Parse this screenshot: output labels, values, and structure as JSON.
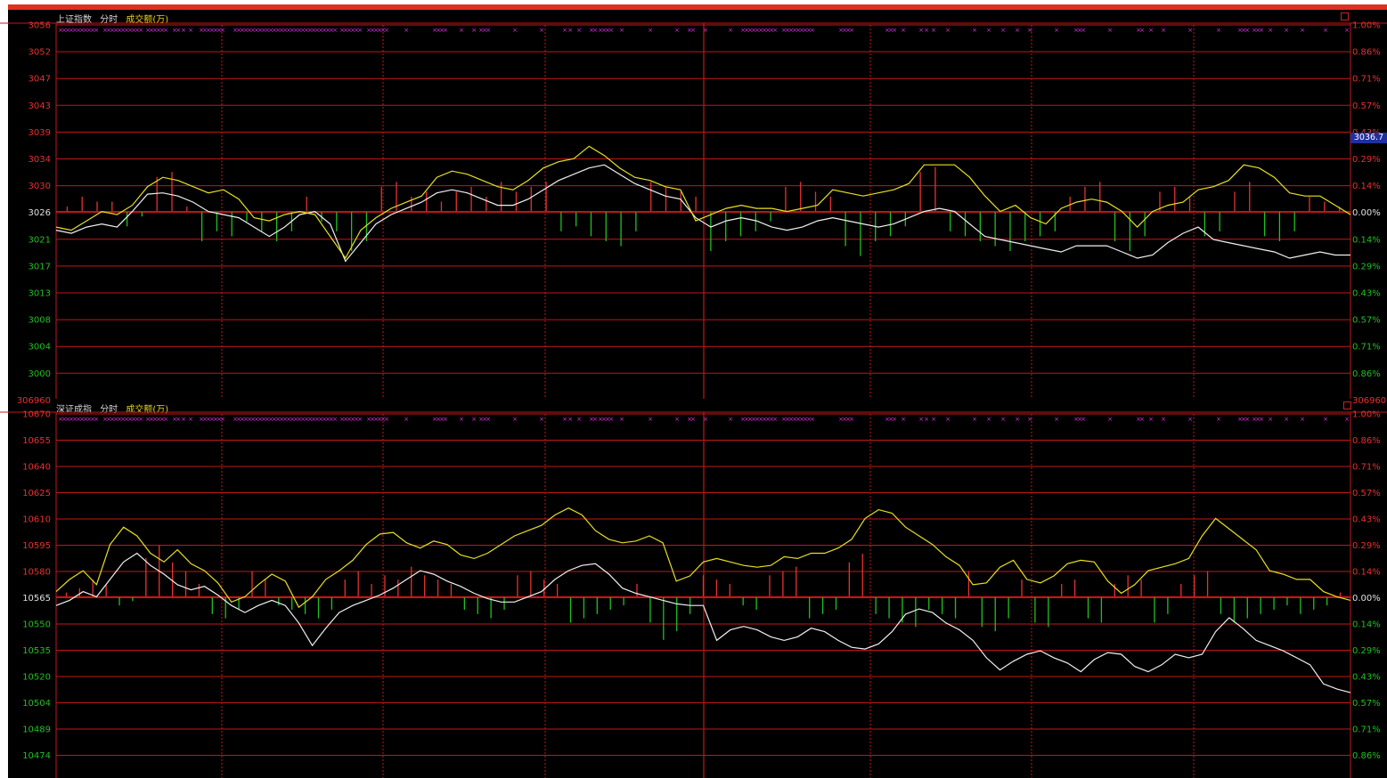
{
  "colors": {
    "background": "#000000",
    "grid": "#c01818",
    "up": "#e83030",
    "down": "#20c020",
    "index_line": "#f0f0f0",
    "avg_line": "#e8e020",
    "marker": "#e030e0",
    "label_green": "#20c020",
    "label_red": "#e83030"
  },
  "chart_data": [
    {
      "type": "line",
      "panel": "top",
      "header": {
        "index_name": "上证指数",
        "mode": "分时",
        "volume_label": "成交额(万)"
      },
      "price_tag": "3036.7",
      "left_labels": [
        "3056",
        "3052",
        "3047",
        "3043",
        "3039",
        "3034",
        "3030",
        "3026",
        "3021",
        "3017",
        "3013",
        "3008",
        "3004",
        "3000"
      ],
      "left_label_bottom": "306960",
      "right_labels": [
        "1.00%",
        "0.86%",
        "0.71%",
        "0.57%",
        "0.43%",
        "0.29%",
        "0.14%",
        "0.00%",
        "0.14%",
        "0.29%",
        "0.43%",
        "0.57%",
        "0.71%",
        "0.86%"
      ],
      "right_label_bottom": "306960",
      "ylim": [
        3000,
        3056
      ],
      "baseline": 3026,
      "series": [
        {
          "values": [
            3023,
            3022.5,
            3023.5,
            3024,
            3023.5,
            3026,
            3028.8,
            3029,
            3028.5,
            3027.5,
            3026,
            3025.5,
            3025,
            3023.5,
            3022,
            3023.5,
            3025.5,
            3026,
            3024,
            3018,
            3021,
            3024,
            3025.5,
            3026.5,
            3027.5,
            3029,
            3029.5,
            3029,
            3028,
            3027,
            3027,
            3028,
            3029.5,
            3031,
            3032,
            3033,
            3033.5,
            3032,
            3030.5,
            3029.5,
            3028.5,
            3028,
            3025,
            3023.5,
            3024.5,
            3025,
            3024.5,
            3023.5,
            3023,
            3023.5,
            3024.5,
            3025,
            3024.5,
            3024,
            3023.5,
            3024,
            3025,
            3026,
            3026.5,
            3026,
            3024,
            3022,
            3021.5,
            3021,
            3020.5,
            3020,
            3019.5,
            3020.5,
            3020.5,
            3020.5,
            3019.5,
            3018.5,
            3019,
            3021,
            3022.5,
            3023.5,
            3021.5,
            3021,
            3020.5,
            3020,
            3019.5,
            3018.5,
            3019,
            3019.5,
            3019,
            3019
          ]
        },
        {
          "values": [
            3023.5,
            3023,
            3024.5,
            3026,
            3025.5,
            3027,
            3030,
            3031.5,
            3031,
            3030,
            3029,
            3029.5,
            3028,
            3025,
            3024.5,
            3025.5,
            3026,
            3025.5,
            3022,
            3018.5,
            3023,
            3025,
            3026.5,
            3027.5,
            3028.5,
            3031.5,
            3032.5,
            3032,
            3031,
            3030,
            3029.5,
            3031,
            3033,
            3034,
            3034.5,
            3036.5,
            3035,
            3033,
            3031.5,
            3031,
            3030,
            3029.5,
            3024.5,
            3025.5,
            3026.5,
            3027,
            3026.5,
            3026.5,
            3026,
            3026.5,
            3027,
            3029.5,
            3029,
            3028.5,
            3029,
            3029.5,
            3030.5,
            3033.5,
            3033.5,
            3033.5,
            3031.5,
            3028.5,
            3026,
            3027,
            3025,
            3024,
            3026.5,
            3027.5,
            3028,
            3027.5,
            3026,
            3023.5,
            3026,
            3027,
            3027.5,
            3029.5,
            3030,
            3031,
            3033.5,
            3033,
            3031.5,
            3029,
            3028.5,
            3028.5,
            3027,
            3025.5
          ]
        }
      ],
      "volume_values": [
        1,
        3,
        2,
        2,
        -3,
        -1,
        7,
        8,
        1,
        -6,
        -4,
        -5,
        -2,
        -4,
        -6,
        -4,
        3,
        -2,
        -4,
        -8,
        -6,
        5,
        6,
        3,
        4,
        2,
        4,
        5,
        3,
        6,
        4,
        5,
        6,
        -4,
        -3,
        -5,
        -6,
        -7,
        -4,
        6,
        5,
        4,
        3,
        -8,
        -6,
        -5,
        -4,
        -2,
        5,
        6,
        4,
        3,
        -7,
        -9,
        -6,
        -5,
        -3,
        8,
        9,
        -4,
        -5,
        -6,
        -7,
        -8,
        -6,
        -5,
        -4,
        3,
        5,
        6,
        -6,
        -8,
        -5,
        4,
        5,
        3,
        -5,
        -4,
        4,
        6,
        -5,
        -6,
        -4,
        3,
        2,
        1
      ]
    },
    {
      "type": "line",
      "panel": "bottom",
      "header": {
        "index_name": "深证成指",
        "mode": "分时",
        "volume_label": "成交额(万)"
      },
      "left_labels": [
        "10670",
        "10655",
        "10640",
        "10625",
        "10610",
        "10595",
        "10580",
        "10565",
        "10550",
        "10535",
        "10520",
        "10504",
        "10489",
        "10474"
      ],
      "right_labels": [
        "1.00%",
        "0.86%",
        "0.71%",
        "0.57%",
        "0.43%",
        "0.29%",
        "0.14%",
        "0.00%",
        "0.14%",
        "0.29%",
        "0.43%",
        "0.57%",
        "0.71%",
        "0.86%"
      ],
      "ylim": [
        10474,
        10670
      ],
      "baseline": 10565,
      "series": [
        {
          "values": [
            10560,
            10563,
            10568,
            10565,
            10575,
            10585,
            10590,
            10583,
            10578,
            10572,
            10569,
            10571,
            10566,
            10560,
            10556,
            10560,
            10563,
            10560,
            10550,
            10537,
            10547,
            10556,
            10560,
            10563,
            10566,
            10570,
            10575,
            10580,
            10578,
            10574,
            10571,
            10567,
            10564,
            10562,
            10562,
            10565,
            10568,
            10575,
            10580,
            10583,
            10584,
            10578,
            10570,
            10567,
            10565,
            10563,
            10561,
            10560,
            10560,
            10540,
            10546,
            10548,
            10546,
            10542,
            10540,
            10542,
            10547,
            10545,
            10540,
            10536,
            10535,
            10538,
            10545,
            10555,
            10558,
            10556,
            10550,
            10546,
            10540,
            10530,
            10523,
            10528,
            10532,
            10534,
            10530,
            10527,
            10522,
            10529,
            10533,
            10532,
            10525,
            10522,
            10526,
            10532,
            10530,
            10532,
            10545,
            10553,
            10547,
            10540,
            10537,
            10534,
            10530,
            10526,
            10515,
            10512,
            10510
          ]
        },
        {
          "values": [
            10568,
            10575,
            10580,
            10572,
            10595,
            10605,
            10600,
            10590,
            10585,
            10592,
            10584,
            10580,
            10573,
            10562,
            10565,
            10572,
            10578,
            10574,
            10559,
            10565,
            10575,
            10580,
            10586,
            10595,
            10601,
            10602,
            10596,
            10593,
            10597,
            10595,
            10589,
            10587,
            10590,
            10595,
            10600,
            10603,
            10606,
            10612,
            10616,
            10612,
            10603,
            10598,
            10596,
            10597,
            10600,
            10596,
            10574,
            10577,
            10585,
            10587,
            10585,
            10583,
            10582,
            10583,
            10588,
            10587,
            10590,
            10590,
            10593,
            10598,
            10610,
            10615,
            10613,
            10605,
            10600,
            10595,
            10588,
            10583,
            10572,
            10573,
            10582,
            10586,
            10575,
            10573,
            10577,
            10584,
            10586,
            10585,
            10574,
            10567,
            10572,
            10580,
            10582,
            10584,
            10587,
            10600,
            10610,
            10604,
            10598,
            10592,
            10580,
            10578,
            10575,
            10575,
            10568,
            10565,
            10563
          ]
        }
      ],
      "volume_values": [
        1,
        2,
        4,
        3,
        -2,
        -1,
        9,
        12,
        8,
        6,
        3,
        -4,
        -5,
        -3,
        6,
        4,
        -2,
        -3,
        -4,
        -5,
        -3,
        4,
        6,
        3,
        5,
        4,
        7,
        5,
        4,
        3,
        -3,
        -4,
        -5,
        -3,
        5,
        6,
        4,
        3,
        -6,
        -5,
        -4,
        -3,
        -2,
        3,
        -6,
        -10,
        -8,
        -4,
        5,
        4,
        3,
        -2,
        -3,
        5,
        6,
        7,
        -5,
        -4,
        -3,
        8,
        10,
        -4,
        -5,
        -6,
        -7,
        -3,
        -4,
        -5,
        6,
        -7,
        -8,
        -5,
        4,
        -6,
        -7,
        3,
        4,
        -5,
        -6,
        3,
        5,
        4,
        -6,
        -4,
        3,
        5,
        6,
        -4,
        -6,
        -5,
        -4,
        -3,
        -2,
        -4,
        -3,
        -2,
        1
      ]
    }
  ]
}
